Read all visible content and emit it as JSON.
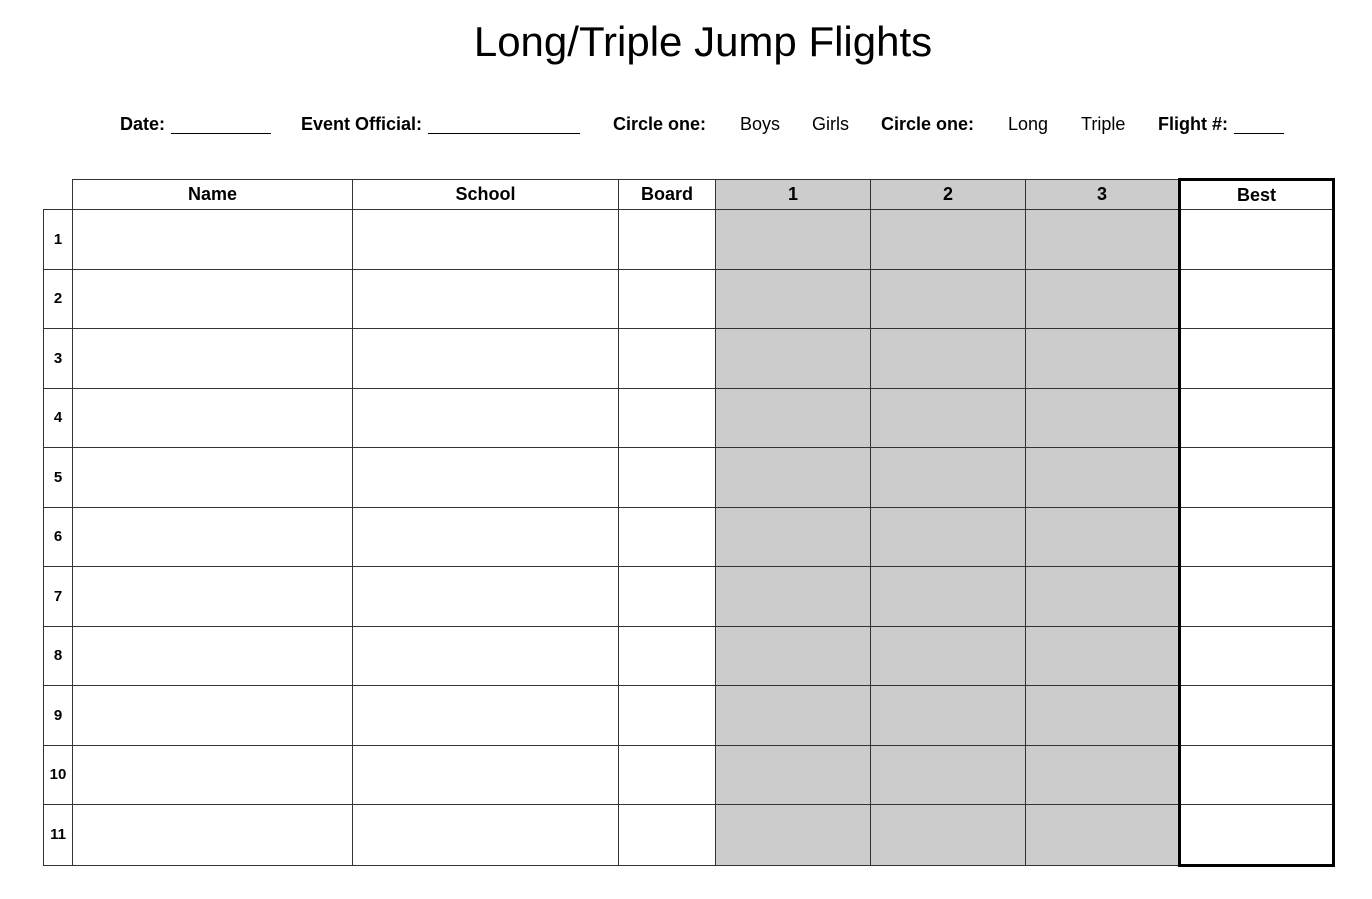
{
  "title": "Long/Triple Jump Flights",
  "header": {
    "date_label": "Date:",
    "official_label": "Event Official:",
    "circle1_label": "Circle one:",
    "gender_options": [
      "Boys",
      "Girls"
    ],
    "circle2_label": "Circle one:",
    "event_options": [
      "Long",
      "Triple"
    ],
    "flight_label": "Flight #:"
  },
  "table": {
    "columns": [
      "Name",
      "School",
      "Board",
      "1",
      "2",
      "3",
      "Best"
    ],
    "shaded_color": "#cccccc",
    "rows": [
      "1",
      "2",
      "3",
      "4",
      "5",
      "6",
      "7",
      "8",
      "9",
      "10",
      "11"
    ]
  }
}
